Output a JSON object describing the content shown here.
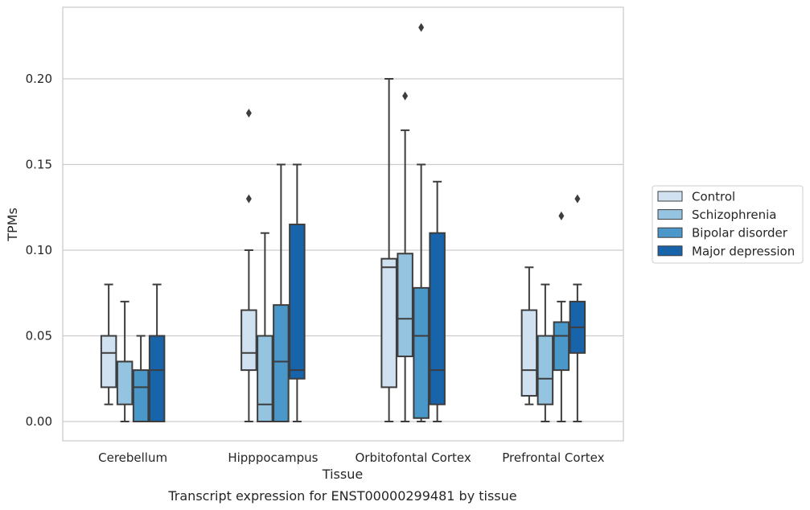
{
  "chart_data": {
    "type": "boxplot",
    "title": "",
    "caption": "Transcript expression for ENST00000299481 by tissue",
    "xlabel": "Tissue",
    "ylabel": "TPMs",
    "ylim": [
      -0.011,
      0.241
    ],
    "yticks": [
      0.0,
      0.05,
      0.1,
      0.15,
      0.2
    ],
    "ytick_labels": [
      "0.00",
      "0.05",
      "0.10",
      "0.15",
      "0.20"
    ],
    "grid": "horizontal",
    "legend_position": "right",
    "categories": [
      "Cerebellum",
      "Hipppocampus",
      "Orbitofontal Cortex",
      "Prefrontal Cortex"
    ],
    "series": [
      {
        "name": "Control",
        "color": "#d0e1f2",
        "boxes": [
          {
            "whislo": 0.01,
            "q1": 0.02,
            "med": 0.04,
            "q3": 0.05,
            "whishi": 0.08,
            "fliers": []
          },
          {
            "whislo": 0.0,
            "q1": 0.03,
            "med": 0.04,
            "q3": 0.065,
            "whishi": 0.1,
            "fliers": [
              0.13,
              0.18
            ]
          },
          {
            "whislo": 0.0,
            "q1": 0.02,
            "med": 0.09,
            "q3": 0.095,
            "whishi": 0.2,
            "fliers": []
          },
          {
            "whislo": 0.01,
            "q1": 0.015,
            "med": 0.03,
            "q3": 0.065,
            "whishi": 0.09,
            "fliers": []
          }
        ]
      },
      {
        "name": "Schizophrenia",
        "color": "#94c4df",
        "boxes": [
          {
            "whislo": 0.0,
            "q1": 0.01,
            "med": 0.035,
            "q3": 0.035,
            "whishi": 0.07,
            "fliers": []
          },
          {
            "whislo": 0.0,
            "q1": 0.0,
            "med": 0.01,
            "q3": 0.05,
            "whishi": 0.11,
            "fliers": []
          },
          {
            "whislo": 0.0,
            "q1": 0.038,
            "med": 0.06,
            "q3": 0.098,
            "whishi": 0.17,
            "fliers": [
              0.19
            ]
          },
          {
            "whislo": 0.0,
            "q1": 0.01,
            "med": 0.025,
            "q3": 0.05,
            "whishi": 0.08,
            "fliers": []
          }
        ]
      },
      {
        "name": "Bipolar disorder",
        "color": "#4a98c9",
        "boxes": [
          {
            "whislo": 0.0,
            "q1": 0.0,
            "med": 0.02,
            "q3": 0.03,
            "whishi": 0.05,
            "fliers": []
          },
          {
            "whislo": 0.0,
            "q1": 0.0,
            "med": 0.035,
            "q3": 0.068,
            "whishi": 0.15,
            "fliers": []
          },
          {
            "whislo": 0.0,
            "q1": 0.002,
            "med": 0.05,
            "q3": 0.078,
            "whishi": 0.15,
            "fliers": [
              0.23
            ]
          },
          {
            "whislo": 0.0,
            "q1": 0.03,
            "med": 0.05,
            "q3": 0.058,
            "whishi": 0.07,
            "fliers": [
              0.12
            ]
          }
        ]
      },
      {
        "name": "Major depression",
        "color": "#1764ab",
        "boxes": [
          {
            "whislo": 0.0,
            "q1": 0.0,
            "med": 0.03,
            "q3": 0.05,
            "whishi": 0.08,
            "fliers": []
          },
          {
            "whislo": 0.0,
            "q1": 0.025,
            "med": 0.03,
            "q3": 0.115,
            "whishi": 0.15,
            "fliers": []
          },
          {
            "whislo": 0.0,
            "q1": 0.01,
            "med": 0.03,
            "q3": 0.11,
            "whishi": 0.14,
            "fliers": []
          },
          {
            "whislo": 0.0,
            "q1": 0.04,
            "med": 0.055,
            "q3": 0.07,
            "whishi": 0.08,
            "fliers": [
              0.13
            ]
          }
        ]
      }
    ]
  }
}
